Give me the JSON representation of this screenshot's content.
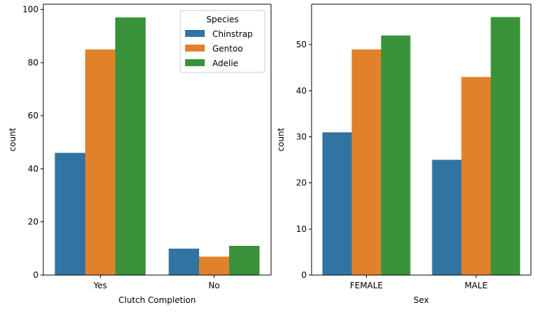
{
  "chart_data": [
    {
      "type": "bar",
      "title": "",
      "xlabel": "Clutch Completion",
      "ylabel": "count",
      "categories": [
        "Yes",
        "No"
      ],
      "series": [
        {
          "name": "Chinstrap",
          "color": "#3274a1",
          "values": [
            46,
            10
          ]
        },
        {
          "name": "Gentoo",
          "color": "#e1812c",
          "values": [
            85,
            7
          ]
        },
        {
          "name": "Adelie",
          "color": "#3a923a",
          "values": [
            97,
            11
          ]
        }
      ],
      "ylim": [
        0,
        102
      ],
      "yticks": [
        0,
        20,
        40,
        60,
        80,
        100
      ],
      "grid": false,
      "legend": {
        "title": "Species",
        "placement": "top-right"
      }
    },
    {
      "type": "bar",
      "title": "",
      "xlabel": "Sex",
      "ylabel": "count",
      "categories": [
        "FEMALE",
        "MALE"
      ],
      "series": [
        {
          "name": "Chinstrap",
          "color": "#3274a1",
          "values": [
            31,
            25
          ]
        },
        {
          "name": "Gentoo",
          "color": "#e1812c",
          "values": [
            49,
            43
          ]
        },
        {
          "name": "Adelie",
          "color": "#3a923a",
          "values": [
            52,
            56
          ]
        }
      ],
      "ylim": [
        0,
        58.8
      ],
      "yticks": [
        0,
        10,
        20,
        30,
        40,
        50
      ],
      "grid": false,
      "legend": null
    }
  ]
}
